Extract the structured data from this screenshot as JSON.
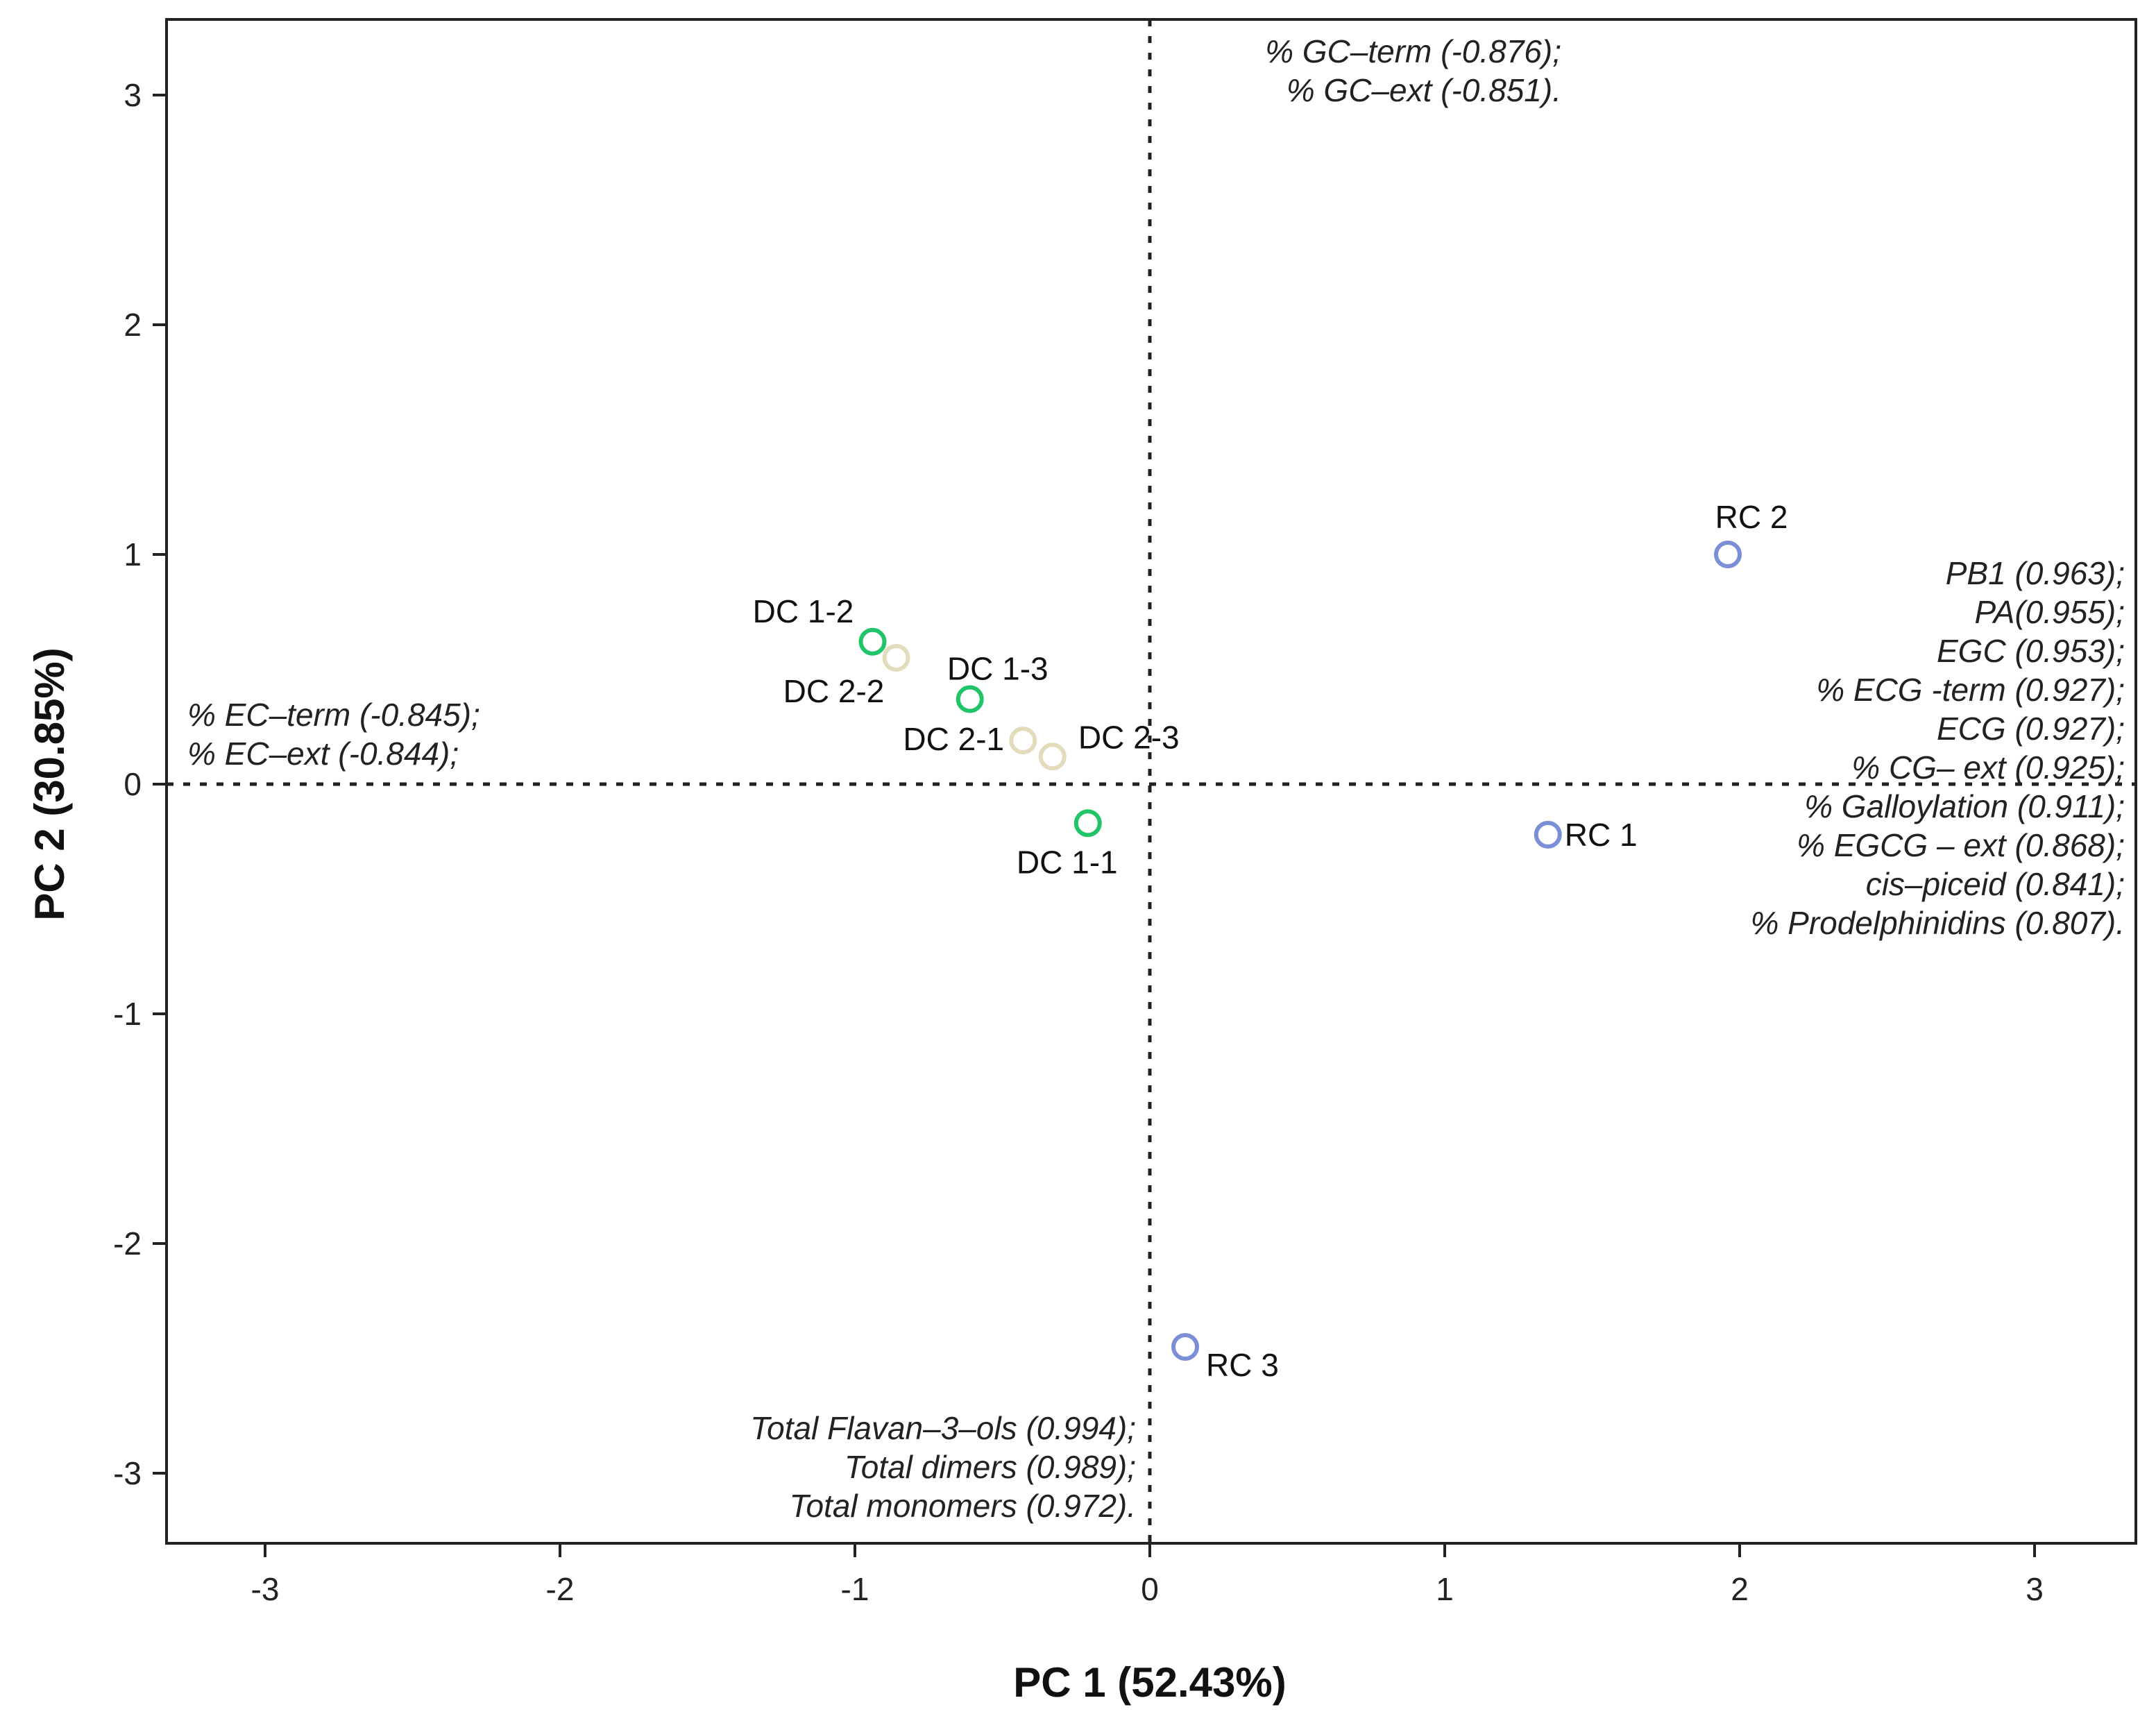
{
  "chart_data": {
    "type": "scatter",
    "title": "",
    "xlabel": "PC 1 (52.43%)",
    "ylabel": "PC 2 (30.85%)",
    "xlim": [
      -3.35,
      3.35
    ],
    "ylim": [
      -3.35,
      3.35
    ],
    "x_ticks": [
      -3,
      -2,
      -1,
      0,
      1,
      2,
      3
    ],
    "y_ticks": [
      -3,
      -2,
      -1,
      0,
      1,
      2,
      3
    ],
    "x_tick_labels": [
      "-3",
      "-2",
      "-1",
      "0",
      "1",
      "2",
      "3"
    ],
    "y_tick_labels": [
      "-3",
      "-2",
      "-1",
      "0",
      "1",
      "2",
      "3"
    ],
    "grid": false,
    "reference_lines": {
      "x": 0,
      "y": 0,
      "style": "dotted"
    },
    "groups": [
      {
        "color": "#22c46a",
        "points": [
          {
            "label": "DC 1-1",
            "x": -0.21,
            "y": -0.17
          },
          {
            "label": "DC 1-2",
            "x": -0.94,
            "y": 0.62
          },
          {
            "label": "DC 1-3",
            "x": -0.61,
            "y": 0.37
          }
        ]
      },
      {
        "color": "#e3dcbc",
        "points": [
          {
            "label": "DC 2-1",
            "x": -0.43,
            "y": 0.19
          },
          {
            "label": "DC 2-2",
            "x": -0.86,
            "y": 0.55
          },
          {
            "label": "DC 2-3",
            "x": -0.33,
            "y": 0.12
          }
        ]
      },
      {
        "color": "#7a8fd6",
        "points": [
          {
            "label": "RC 1",
            "x": 1.35,
            "y": -0.22
          },
          {
            "label": "RC 2",
            "x": 1.96,
            "y": 1.0
          },
          {
            "label": "RC 3",
            "x": 0.12,
            "y": -2.45
          }
        ]
      }
    ],
    "annotations": {
      "top": [
        "% GC–term (-0.876);",
        "% GC–ext (-0.851)."
      ],
      "left": [
        "% EC–term (-0.845);",
        "% EC–ext (-0.844);"
      ],
      "right": [
        "PB1 (0.963);",
        "PA(0.955);",
        "EGC (0.953);",
        "% ECG -term (0.927);",
        "ECG (0.927);",
        "% CG– ext (0.925);",
        "% Galloylation (0.911);",
        "% EGCG – ext (0.868);",
        "cis–piceid (0.841);",
        "% Prodelphinidins (0.807)."
      ],
      "bottom": [
        "Total Flavan–3–ols (0.994);",
        "Total dimers (0.989);",
        "Total monomers (0.972)."
      ]
    }
  }
}
